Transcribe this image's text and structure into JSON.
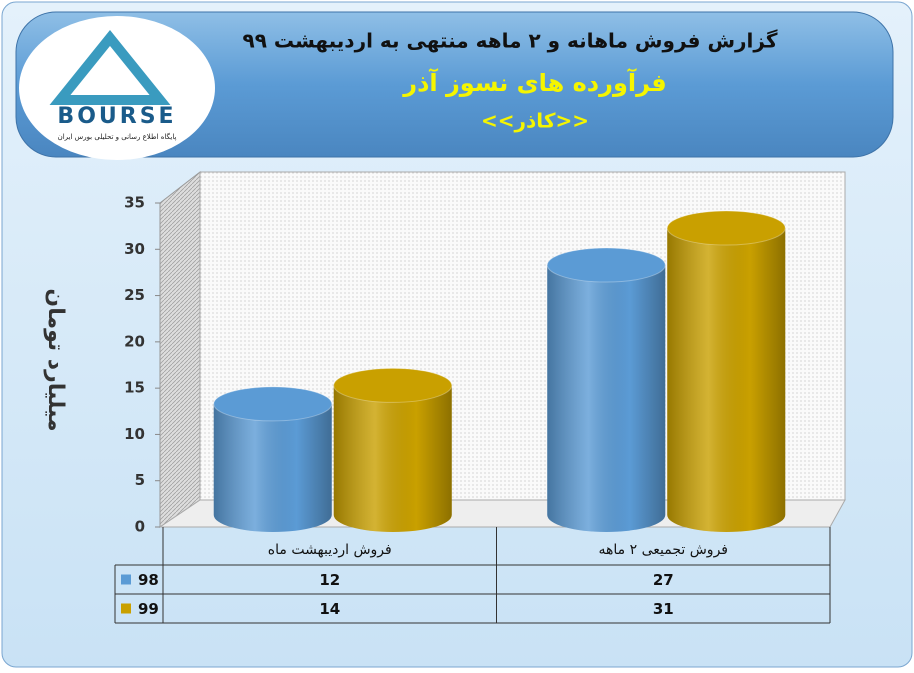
{
  "logo": {
    "name": "BOURSE",
    "tagline": "پایگاه اطلاع رسانی و تحلیلی بورس ایران"
  },
  "chart_data": {
    "type": "cylinder",
    "title": "گزارش فروش ماهانه و ۲ ماهه منتهی به اردیبهشت ۹۹",
    "subtitle": "فرآورده های نسوز آذر",
    "annotation": "<<کاذر>>",
    "y_label": "میلیارد تومان",
    "categories": [
      "فروش اردیبهشت  ماه",
      "فروش تجمیعی ۲ ماهه"
    ],
    "series": [
      {
        "name": "98",
        "color": "#5b9bd5",
        "values": [
          12,
          27
        ]
      },
      {
        "name": "99",
        "color": "#c9a000",
        "values": [
          14,
          31
        ]
      }
    ],
    "ylim": [
      0,
      35
    ],
    "yticks": [
      0,
      5,
      10,
      15,
      20,
      25,
      30,
      35
    ],
    "grid": false,
    "data_table": true
  }
}
